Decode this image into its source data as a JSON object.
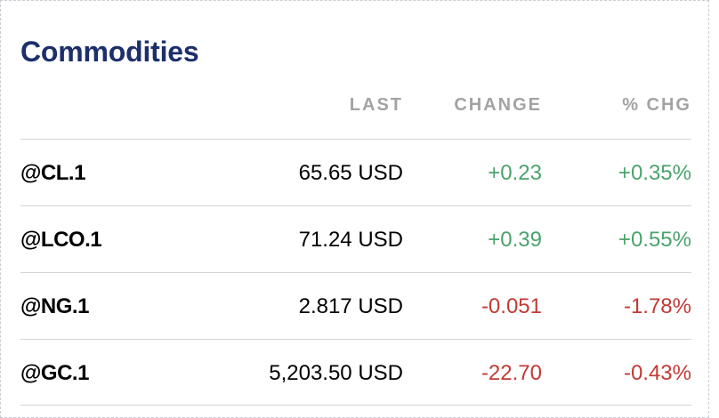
{
  "title": "Commodities",
  "columns": {
    "last": "LAST",
    "change": "CHANGE",
    "pct_change": "% CHG"
  },
  "colors": {
    "title": "#1c2f6b",
    "positive": "#4aa36b",
    "negative": "#c13a35",
    "header": "#a3a3a3"
  },
  "rows": [
    {
      "symbol": "@CL.1",
      "last": "65.65 USD",
      "change": "+0.23",
      "pct_change": "+0.35%",
      "direction": "up"
    },
    {
      "symbol": "@LCO.1",
      "last": "71.24 USD",
      "change": "+0.39",
      "pct_change": "+0.55%",
      "direction": "up"
    },
    {
      "symbol": "@NG.1",
      "last": "2.817 USD",
      "change": "-0.051",
      "pct_change": "-1.78%",
      "direction": "down"
    },
    {
      "symbol": "@GC.1",
      "last": "5,203.50 USD",
      "change": "-22.70",
      "pct_change": "-0.43%",
      "direction": "down"
    }
  ]
}
